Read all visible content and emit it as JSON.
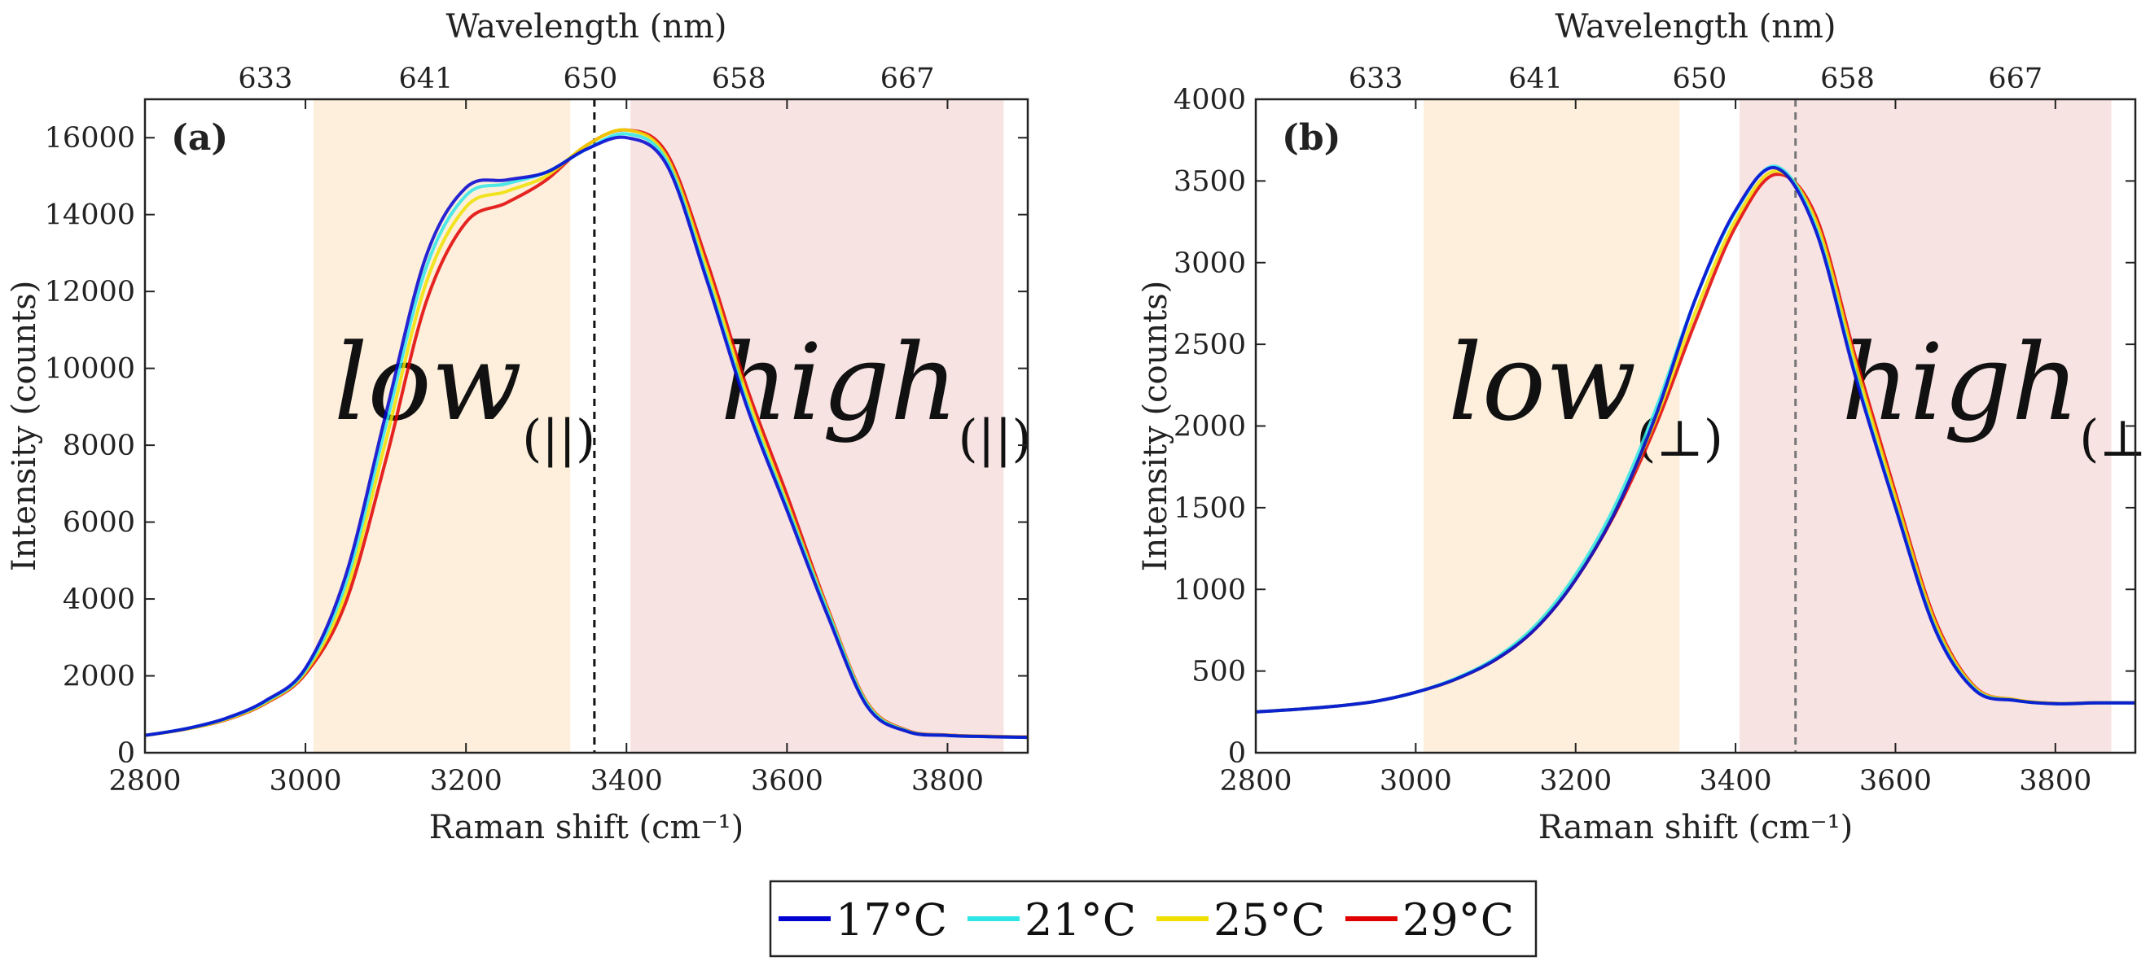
{
  "chart_data": [
    {
      "type": "line",
      "panel_label": "(a)",
      "xlabel": "Raman shift (cm⁻¹)",
      "ylabel": "Intensity (counts)",
      "top_axis_label": "Wavelength (nm)",
      "xlim": [
        2800,
        3900
      ],
      "ylim": [
        0,
        17000
      ],
      "x_ticks": [
        2800,
        3000,
        3200,
        3400,
        3600,
        3800
      ],
      "y_ticks": [
        0,
        2000,
        4000,
        6000,
        8000,
        10000,
        12000,
        14000,
        16000
      ],
      "top_ticks": [
        {
          "x": 2950,
          "label": "633"
        },
        {
          "x": 3150,
          "label": "641"
        },
        {
          "x": 3355,
          "label": "650"
        },
        {
          "x": 3540,
          "label": "658"
        },
        {
          "x": 3750,
          "label": "667"
        }
      ],
      "regions": [
        {
          "name": "low",
          "sub": "(||)",
          "x_range": [
            3010,
            3330
          ],
          "color": "#fdefdc"
        },
        {
          "name": "high",
          "sub": "(||)",
          "x_range": [
            3405,
            3870
          ],
          "color": "#f8e3e3"
        }
      ],
      "divider_x": 3360,
      "x": [
        2800,
        2850,
        2900,
        2950,
        3000,
        3050,
        3100,
        3150,
        3200,
        3250,
        3300,
        3350,
        3400,
        3450,
        3500,
        3550,
        3600,
        3650,
        3700,
        3750,
        3800,
        3850,
        3900
      ],
      "series": [
        {
          "name": "17°C",
          "color": "#0000d0",
          "values": [
            450,
            620,
            890,
            1350,
            2200,
            4600,
            8800,
            12900,
            14700,
            14900,
            15100,
            15700,
            16000,
            15300,
            12300,
            9000,
            6300,
            3600,
            1200,
            550,
            450,
            420,
            400
          ]
        },
        {
          "name": "21°C",
          "color": "#2ee6e6",
          "values": [
            450,
            620,
            880,
            1330,
            2150,
            4400,
            8500,
            12600,
            14500,
            14800,
            15100,
            15700,
            16100,
            15400,
            12400,
            9100,
            6400,
            3700,
            1250,
            560,
            450,
            420,
            400
          ]
        },
        {
          "name": "25°C",
          "color": "#f0e000",
          "values": [
            450,
            610,
            860,
            1300,
            2100,
            4150,
            8100,
            12200,
            14200,
            14600,
            15000,
            15800,
            16200,
            15500,
            12600,
            9300,
            6500,
            3750,
            1280,
            570,
            455,
            425,
            405
          ]
        },
        {
          "name": "29°C",
          "color": "#e00000",
          "values": [
            450,
            610,
            850,
            1280,
            2050,
            3900,
            7600,
            11700,
            13800,
            14300,
            14900,
            15800,
            16200,
            15600,
            12800,
            9500,
            6700,
            3800,
            1300,
            580,
            460,
            430,
            410
          ]
        }
      ]
    },
    {
      "type": "line",
      "panel_label": "(b)",
      "xlabel": "Raman shift (cm⁻¹)",
      "ylabel": "Intensity (counts)",
      "top_axis_label": "Wavelength (nm)",
      "xlim": [
        2800,
        3900
      ],
      "ylim": [
        0,
        4000
      ],
      "x_ticks": [
        2800,
        3000,
        3200,
        3400,
        3600,
        3800
      ],
      "y_ticks": [
        0,
        500,
        1000,
        1500,
        2000,
        2500,
        3000,
        3500,
        4000
      ],
      "top_ticks": [
        {
          "x": 2950,
          "label": "633"
        },
        {
          "x": 3150,
          "label": "641"
        },
        {
          "x": 3355,
          "label": "650"
        },
        {
          "x": 3540,
          "label": "658"
        },
        {
          "x": 3750,
          "label": "667"
        }
      ],
      "regions": [
        {
          "name": "low",
          "sub": "(⊥)",
          "x_range": [
            3010,
            3330
          ],
          "color": "#fdefdc"
        },
        {
          "name": "high",
          "sub": "(⊥)",
          "x_range": [
            3405,
            3870
          ],
          "color": "#f8e3e3"
        }
      ],
      "divider_x": 3475,
      "x": [
        2800,
        2850,
        2900,
        2950,
        3000,
        3050,
        3100,
        3150,
        3200,
        3250,
        3300,
        3350,
        3400,
        3450,
        3500,
        3550,
        3600,
        3650,
        3700,
        3750,
        3800,
        3850,
        3900
      ],
      "series": [
        {
          "name": "17°C",
          "color": "#0000d0",
          "values": [
            250,
            265,
            285,
            315,
            370,
            450,
            570,
            760,
            1060,
            1480,
            2060,
            2780,
            3320,
            3580,
            3200,
            2300,
            1500,
            750,
            380,
            320,
            300,
            305,
            305
          ]
        },
        {
          "name": "21°C",
          "color": "#2ee6e6",
          "values": [
            250,
            265,
            285,
            315,
            370,
            455,
            580,
            780,
            1090,
            1520,
            2100,
            2780,
            3310,
            3590,
            3220,
            2320,
            1510,
            760,
            385,
            320,
            300,
            305,
            305
          ]
        },
        {
          "name": "25°C",
          "color": "#f0e000",
          "values": [
            250,
            265,
            285,
            315,
            370,
            450,
            575,
            770,
            1070,
            1490,
            2040,
            2700,
            3260,
            3560,
            3260,
            2380,
            1560,
            790,
            395,
            325,
            302,
            306,
            306
          ]
        },
        {
          "name": "29°C",
          "color": "#e00000",
          "values": [
            250,
            265,
            285,
            315,
            370,
            450,
            570,
            760,
            1060,
            1470,
            2000,
            2640,
            3220,
            3540,
            3290,
            2420,
            1590,
            810,
            400,
            325,
            302,
            306,
            306
          ]
        }
      ]
    }
  ],
  "legend": [
    {
      "label": "17°C",
      "color": "#0000d0"
    },
    {
      "label": "21°C",
      "color": "#2ee6e6"
    },
    {
      "label": "25°C",
      "color": "#f0e000"
    },
    {
      "label": "29°C",
      "color": "#e00000"
    }
  ]
}
